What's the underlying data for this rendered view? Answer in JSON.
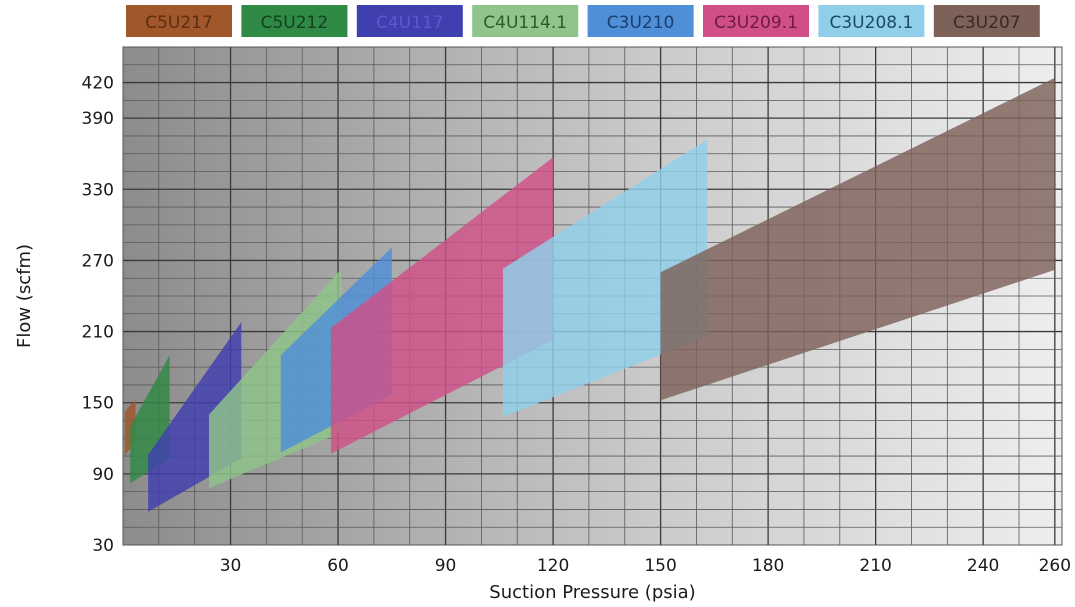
{
  "chart_data": {
    "type": "area",
    "title": "",
    "xlabel": "Suction Pressure (psia)",
    "ylabel": "Flow (scfm)",
    "xlim": [
      0,
      262
    ],
    "ylim": [
      30,
      450
    ],
    "x_ticks": [
      30,
      60,
      90,
      120,
      150,
      180,
      210,
      240,
      260
    ],
    "y_ticks": [
      30,
      90,
      150,
      210,
      270,
      330,
      390,
      420
    ],
    "grid": true,
    "legend_position": "top",
    "series": [
      {
        "name": "C5U217",
        "color": "#a0572a",
        "text_color": "#5a2e10",
        "polygon": [
          [
            0.5,
            105
          ],
          [
            3.5,
            118
          ],
          [
            3.5,
            152
          ],
          [
            0.5,
            143
          ]
        ]
      },
      {
        "name": "C5U212",
        "color": "#2f8a45",
        "text_color": "#14401f",
        "polygon": [
          [
            2,
            82
          ],
          [
            13,
            103
          ],
          [
            13,
            190
          ],
          [
            2,
            130
          ]
        ]
      },
      {
        "name": "C4U117",
        "color": "#3f3fb0",
        "text_color": "#5a5ad0",
        "polygon": [
          [
            7,
            58
          ],
          [
            33,
            103
          ],
          [
            33,
            218
          ],
          [
            7,
            106
          ]
        ]
      },
      {
        "name": "C4U114.1",
        "color": "#8fc48a",
        "text_color": "#2f5a2c",
        "polygon": [
          [
            24,
            78
          ],
          [
            61,
            125
          ],
          [
            61,
            263
          ],
          [
            24,
            140
          ]
        ]
      },
      {
        "name": "C3U210",
        "color": "#4f8fd8",
        "text_color": "#1a3f6e",
        "polygon": [
          [
            44,
            108
          ],
          [
            75,
            157
          ],
          [
            75,
            281
          ],
          [
            44,
            190
          ]
        ]
      },
      {
        "name": "C3U209.1",
        "color": "#d04f87",
        "text_color": "#6e1a40",
        "polygon": [
          [
            58,
            107
          ],
          [
            120,
            203
          ],
          [
            120,
            357
          ],
          [
            58,
            213
          ]
        ]
      },
      {
        "name": "C3U208.1",
        "color": "#90cfea",
        "text_color": "#1a4a66",
        "polygon": [
          [
            106,
            138
          ],
          [
            163,
            206
          ],
          [
            163,
            372
          ],
          [
            106,
            263
          ]
        ]
      },
      {
        "name": "C3U207",
        "color": "#7c6259",
        "text_color": "#3a2a24",
        "polygon": [
          [
            150,
            152
          ],
          [
            260,
            262
          ],
          [
            260,
            424
          ],
          [
            150,
            260
          ]
        ]
      }
    ]
  }
}
